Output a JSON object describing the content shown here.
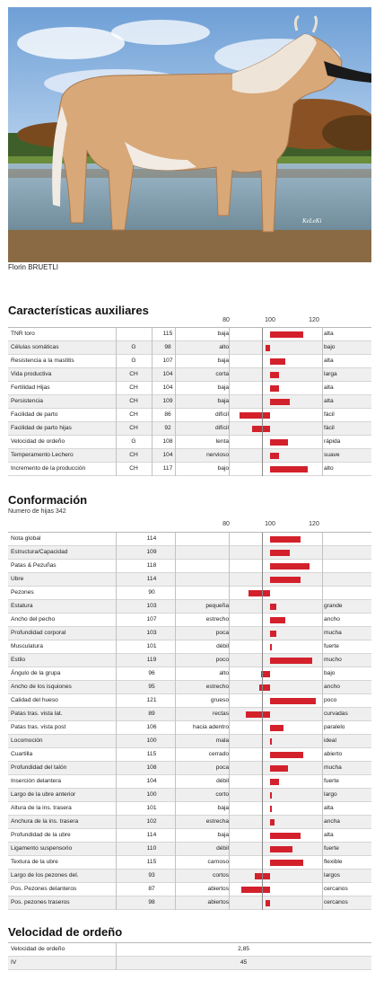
{
  "photo": {
    "watermark": "KeLeKi",
    "credit": "Florin BRUETLI"
  },
  "colors": {
    "bar": "#d3212c",
    "row_alt": "#efefef"
  },
  "scale_labels": [
    "80",
    "100",
    "120"
  ],
  "auxiliares": {
    "title": "Características auxiliares",
    "rows": [
      {
        "name": "TNR toro",
        "src": "",
        "value": "115",
        "low": "baja",
        "high": "alta",
        "v": 115
      },
      {
        "name": "Células somáticas",
        "src": "G",
        "value": "98",
        "low": "alto",
        "high": "bajo",
        "v": 98
      },
      {
        "name": "Resistencia a la mastitis",
        "src": "G",
        "value": "107",
        "low": "baja",
        "high": "alta",
        "v": 107
      },
      {
        "name": "Vida productiva",
        "src": "CH",
        "value": "104",
        "low": "corta",
        "high": "larga",
        "v": 104
      },
      {
        "name": "Fertilidad Hijas",
        "src": "CH",
        "value": "104",
        "low": "baja",
        "high": "alta",
        "v": 104
      },
      {
        "name": "Persistencia",
        "src": "CH",
        "value": "109",
        "low": "baja",
        "high": "alta",
        "v": 109
      },
      {
        "name": "Facilidad de parto",
        "src": "CH",
        "value": "86",
        "low": "difícil",
        "high": "fácil",
        "v": 86
      },
      {
        "name": "Facilidad de parto hijas",
        "src": "CH",
        "value": "92",
        "low": "difícil",
        "high": "fácil",
        "v": 92
      },
      {
        "name": "Velocidad de ordeño",
        "src": "G",
        "value": "108",
        "low": "lenta",
        "high": "rápida",
        "v": 108
      },
      {
        "name": "Temperamento Lechero",
        "src": "CH",
        "value": "104",
        "low": "nervioso",
        "high": "suave",
        "v": 104
      },
      {
        "name": "Incremento de la producción",
        "src": "CH",
        "value": "117",
        "low": "bajo",
        "high": "alto",
        "v": 117
      }
    ]
  },
  "conformacion": {
    "title": "Conformación",
    "subtitle": "Numero de hijas 342",
    "rows": [
      {
        "name": "Nota global",
        "value": "114",
        "low": "",
        "high": "",
        "v": 114
      },
      {
        "name": "Estructura/Capacidad",
        "value": "109",
        "low": "",
        "high": "",
        "v": 109
      },
      {
        "name": "Patas & Pezuñas",
        "value": "118",
        "low": "",
        "high": "",
        "v": 118
      },
      {
        "name": "Ubre",
        "value": "114",
        "low": "",
        "high": "",
        "v": 114
      },
      {
        "name": "Pezones",
        "value": "90",
        "low": "",
        "high": "",
        "v": 90
      },
      {
        "name": "Estatura",
        "value": "103",
        "low": "pequeña",
        "high": "grande",
        "v": 103
      },
      {
        "name": "Ancho del pecho",
        "value": "107",
        "low": "estrecho",
        "high": "ancho",
        "v": 107
      },
      {
        "name": "Profundidad corporal",
        "value": "103",
        "low": "poca",
        "high": "mucha",
        "v": 103
      },
      {
        "name": "Musculatura",
        "value": "101",
        "low": "débil",
        "high": "fuerte",
        "v": 101
      },
      {
        "name": "Estilo",
        "value": "119",
        "low": "poco",
        "high": "mucho",
        "v": 119
      },
      {
        "name": "Ángulo de la grupa",
        "value": "96",
        "low": "alto",
        "high": "bajo",
        "v": 96
      },
      {
        "name": "Ancho de los isquiones",
        "value": "95",
        "low": "estrecho",
        "high": "ancho",
        "v": 95
      },
      {
        "name": "Calidad del hueso",
        "value": "121",
        "low": "grueso",
        "high": "poco",
        "v": 121
      },
      {
        "name": "Patas tras. vista lat.",
        "value": "89",
        "low": "rectas",
        "high": "curvadas",
        "v": 89
      },
      {
        "name": "Patas tras. vista post",
        "value": "106",
        "low": "hacia adentro",
        "high": "paralelo",
        "v": 106
      },
      {
        "name": "Locomoción",
        "value": "100",
        "low": "mala",
        "high": "ideal",
        "v": 100
      },
      {
        "name": "Cuartilla",
        "value": "115",
        "low": "cerrado",
        "high": "abierto",
        "v": 115
      },
      {
        "name": "Profundidad del talón",
        "value": "108",
        "low": "poca",
        "high": "mucha",
        "v": 108
      },
      {
        "name": "Inserción delantera",
        "value": "104",
        "low": "débil",
        "high": "fuerte",
        "v": 104
      },
      {
        "name": "Largo de la ubre anterior",
        "value": "100",
        "low": "corto",
        "high": "largo",
        "v": 100
      },
      {
        "name": "Altura de la ins. trasera",
        "value": "101",
        "low": "baja",
        "high": "alta",
        "v": 101
      },
      {
        "name": "Anchura de la ins. trasera",
        "value": "102",
        "low": "estrecha",
        "high": "ancha",
        "v": 102
      },
      {
        "name": "Profundidad de la ubre",
        "value": "114",
        "low": "baja",
        "high": "alta",
        "v": 114
      },
      {
        "name": "Ligamento suspensorio",
        "value": "110",
        "low": "débil",
        "high": "fuerte",
        "v": 110
      },
      {
        "name": "Textura de la ubre",
        "value": "115",
        "low": "carnoso",
        "high": "flexible",
        "v": 115
      },
      {
        "name": "Largo de los pezones del.",
        "value": "93",
        "low": "cortos",
        "high": "largos",
        "v": 93
      },
      {
        "name": "Pos. Pezones delanteros",
        "value": "87",
        "low": "abiertos",
        "high": "cercanos",
        "v": 87
      },
      {
        "name": "Pos. pezones traseros",
        "value": "98",
        "low": "abiertos",
        "high": "cercanos",
        "v": 98
      }
    ]
  },
  "ordeno": {
    "title": "Velocidad de ordeño",
    "rows": [
      {
        "name": "Velocidad de ordeño",
        "value": "2,85"
      },
      {
        "name": "IV",
        "value": "45"
      }
    ]
  }
}
